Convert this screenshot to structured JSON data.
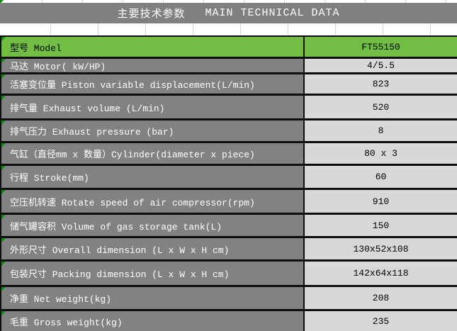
{
  "title": {
    "zh": "主要技术参数",
    "en": "MAIN TECHNICAL DATA"
  },
  "colors": {
    "title_band_bg": "#808080",
    "label_cell_bg": "#828282",
    "value_cell_bg": "#d8d8d8",
    "highlight_green": "#72be44",
    "separator": "#0e0e0e",
    "flag_triangle_green": "#0f8a0f",
    "title_text": "#ffffff",
    "label_text": "#ffffff",
    "value_text": "#000000"
  },
  "table": {
    "rows": [
      {
        "label": "型号 Model",
        "value": "FT55150",
        "highlight": true
      },
      {
        "label": "马达 Motor( kW/HP)",
        "value": "4/5.5",
        "highlight": false
      },
      {
        "label": "活塞变位量 Piston variable displacement(L/min)",
        "value": "823",
        "highlight": false
      },
      {
        "label": "排气量 Exhaust volume (L/min)",
        "value": "520",
        "highlight": false
      },
      {
        "label": "排气压力 Exhaust pressure (bar)",
        "value": "8",
        "highlight": false
      },
      {
        "label": "气缸（直径mm x 数量）Cylinder(diameter x piece)",
        "value": "80 x 3",
        "highlight": false
      },
      {
        "label": "行程 Stroke(mm)",
        "value": "60",
        "highlight": false
      },
      {
        "label": "空压机转速 Rotate speed of air compressor(rpm)",
        "value": "910",
        "highlight": false
      },
      {
        "label": "储气罐容积 Volume of gas storage tank(L)",
        "value": "150",
        "highlight": false
      },
      {
        "label": "外形尺寸 Overall dimension (L x W x H cm)",
        "value": "130x52x108",
        "highlight": false
      },
      {
        "label": "包装尺寸 Packing dimension (L x W x H cm)",
        "value": "142x64x118",
        "highlight": false
      },
      {
        "label": "净重 Net weight(kg)",
        "value": "208",
        "highlight": false
      },
      {
        "label": "毛重 Gross weight(kg)",
        "value": "235",
        "highlight": false
      }
    ]
  }
}
